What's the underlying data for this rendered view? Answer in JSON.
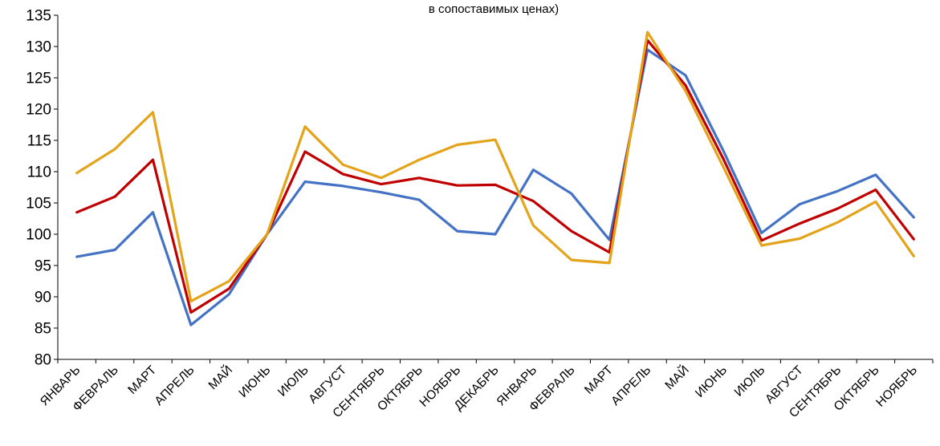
{
  "chart_data": {
    "type": "line",
    "title": "в сопоставимых ценах)",
    "ylim": [
      80,
      135
    ],
    "yticks": [
      80,
      85,
      90,
      95,
      100,
      105,
      110,
      115,
      120,
      125,
      130,
      135
    ],
    "categories": [
      "ЯНВАРЬ",
      "ФЕВРАЛЬ",
      "МАРТ",
      "АПРЕЛЬ",
      "МАЙ",
      "ИЮНЬ",
      "ИЮЛЬ",
      "АВГУСТ",
      "СЕНТЯБРЬ",
      "ОКТЯБРЬ",
      "НОЯБРЬ",
      "ДЕКАБРЬ",
      "ЯНВАРЬ",
      "ФЕВРАЛЬ",
      "МАРТ",
      "АПРЕЛЬ",
      "МАЙ",
      "ИЮНЬ",
      "ИЮЛЬ",
      "АВГУСТ",
      "СЕНТЯБРЬ",
      "ОКТЯБРЬ",
      "НОЯБРЬ"
    ],
    "series": [
      {
        "color": "#4472C4",
        "values": [
          96.4,
          97.5,
          103.5,
          85.5,
          90.4,
          100.0,
          108.4,
          107.7,
          106.7,
          105.5,
          100.5,
          100.0,
          110.3,
          106.5,
          99.1,
          129.5,
          125.4,
          113.3,
          100.2,
          104.8,
          106.9,
          109.5,
          102.7
        ]
      },
      {
        "color": "#C00000",
        "values": [
          103.5,
          106.0,
          111.9,
          87.5,
          91.3,
          100.0,
          113.2,
          109.6,
          108.0,
          109.0,
          107.8,
          107.9,
          105.3,
          100.5,
          97.1,
          131.0,
          123.8,
          112.0,
          99.0,
          101.7,
          104.1,
          107.1,
          99.2
        ]
      },
      {
        "color": "#E3A41B",
        "values": [
          109.8,
          113.6,
          119.5,
          89.3,
          92.5,
          100.0,
          117.2,
          111.1,
          109.0,
          111.9,
          114.3,
          115.1,
          101.4,
          95.9,
          95.4,
          132.3,
          122.9,
          110.7,
          98.2,
          99.3,
          101.9,
          105.2,
          96.5
        ]
      }
    ]
  }
}
